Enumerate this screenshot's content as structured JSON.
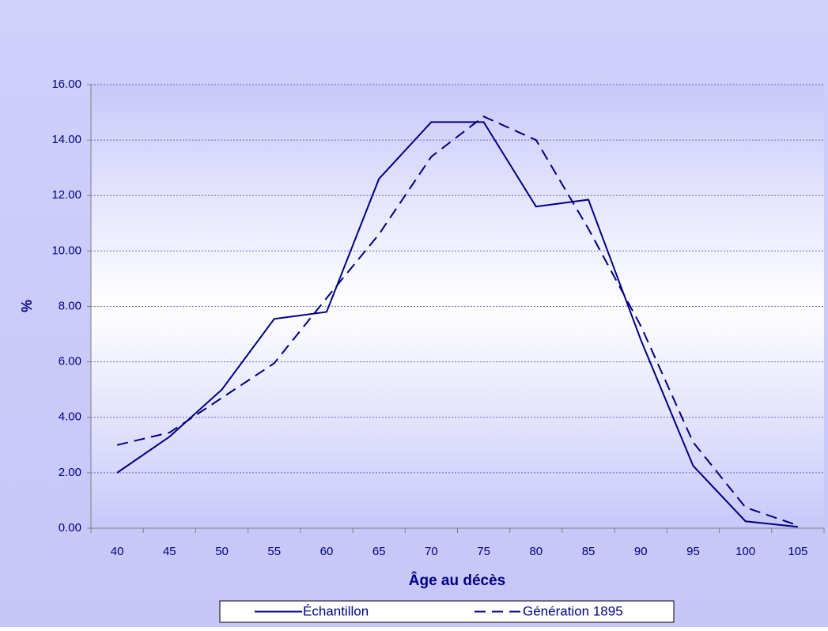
{
  "chart_data": {
    "type": "line",
    "x_label": "Âge au décès",
    "y_label": "%",
    "categories": [
      40,
      45,
      50,
      55,
      60,
      65,
      70,
      75,
      80,
      85,
      90,
      95,
      100,
      105
    ],
    "series": [
      {
        "name": "Échantillon",
        "color": "#000080",
        "line_style": "solid",
        "values": [
          2.0,
          3.3,
          5.0,
          7.55,
          7.8,
          12.6,
          14.65,
          14.65,
          11.6,
          11.85,
          6.8,
          2.25,
          0.25,
          0.05
        ]
      },
      {
        "name": "Génération 1895",
        "color": "#000080",
        "line_style": "dashed",
        "values": [
          3.0,
          3.45,
          4.7,
          5.95,
          8.3,
          10.6,
          13.4,
          14.85,
          14.0,
          10.8,
          7.3,
          3.1,
          0.75,
          0.1
        ]
      }
    ],
    "ylim": [
      0,
      16
    ],
    "yticks": [
      {
        "value": 0,
        "label": "0.00"
      },
      {
        "value": 2,
        "label": "2.00"
      },
      {
        "value": 4,
        "label": "4.00"
      },
      {
        "value": 6,
        "label": "6.00"
      },
      {
        "value": 8,
        "label": "8.00"
      },
      {
        "value": 10,
        "label": "10.00"
      },
      {
        "value": 12,
        "label": "12.00"
      },
      {
        "value": 14,
        "label": "14.00"
      },
      {
        "value": 16,
        "label": "16.00"
      }
    ],
    "grid": true
  }
}
